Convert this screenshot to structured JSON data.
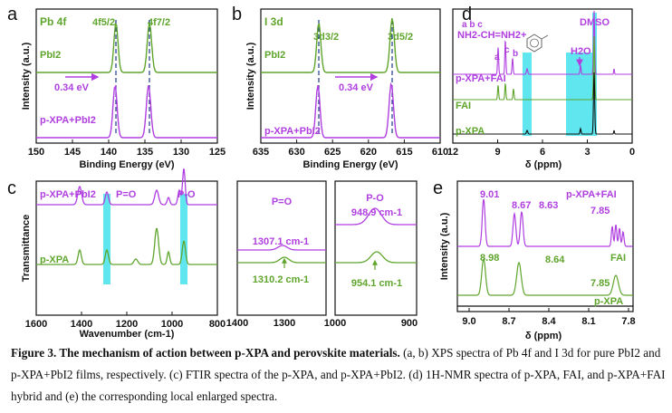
{
  "panels": {
    "a": {
      "letter": "a",
      "title": "Pb 4f",
      "peak_left": "4f5/2",
      "peak_right": "4f7/2",
      "trace_top": "PbI2",
      "trace_bottom": "p-XPA+PbI2",
      "shift": "0.34 eV",
      "ylabel": "Intensity (a.u.)",
      "xlabel": "Binding Energy (eV)",
      "xticks": [
        "150",
        "145",
        "140",
        "135",
        "130",
        "125"
      ]
    },
    "b": {
      "letter": "b",
      "title": "I 3d",
      "peak_left": "3d3/2",
      "peak_right": "3d5/2",
      "trace_top": "PbI2",
      "trace_bottom": "p-XPA+PbI2",
      "shift": "0.34 eV",
      "ylabel": "Intensity (a.u.)",
      "xlabel": "Binding Energy (eV)",
      "xticks": [
        "635",
        "630",
        "625",
        "620",
        "615",
        "610"
      ]
    },
    "c": {
      "letter": "c",
      "trace_top": "p-XPA+PbI2",
      "trace_bottom": "p-XPA",
      "band1": "P=O",
      "band2": "P-O",
      "ylabel": "Transmittance",
      "xlabel": "Wavenumber (cm-1)",
      "xticks": [
        "1600",
        "1400",
        "1200",
        "1000",
        "800"
      ],
      "inset1_title": "P=O",
      "inset1_top": "1307.1 cm-1",
      "inset1_bottom": "1310.2 cm-1",
      "inset1_xticks": [
        "1400",
        "1300"
      ],
      "inset2_title": "P-O",
      "inset2_top": "948.9 cm-1",
      "inset2_bottom": "954.1 cm-1",
      "inset2_xticks": [
        "1000",
        "900"
      ]
    },
    "d": {
      "letter": "d",
      "struct_letters": "a   b   c",
      "structure": "NH2-CH=NH2+",
      "solvent": "DMSO",
      "water": "H2O",
      "peak_letters": [
        "a",
        "c",
        "b"
      ],
      "traces": [
        "p-XPA+FAI",
        "FAI",
        "p-XPA"
      ],
      "xlabel": "δ (ppm)",
      "xticks": [
        "12",
        "9",
        "6",
        "3",
        "0"
      ]
    },
    "e": {
      "letter": "e",
      "ylabel": "Intensity (a.u.)",
      "trace_top": "p-XPA+FAI",
      "trace_mid": "FAI",
      "trace_bottom": "p-XPA",
      "top_peaks": [
        "9.01",
        "8.67",
        "8.63",
        "7.85"
      ],
      "mid_peaks": [
        "8.98",
        "8.64",
        "7.85"
      ],
      "xlabel": "δ (ppm)",
      "xticks": [
        "9.0",
        "8.7",
        "8.4",
        "8.1",
        "7.8"
      ]
    }
  },
  "caption": {
    "label": "Figure 3. The mechanism of action between p-XPA and perovskite materials.",
    "text": " (a, b) XPS spectra of Pb 4f and I 3d for pure PbI2 and p-XPA+PbI2 films, respectively. (c) FTIR spectra of the p-XPA, and p-XPA+PbI2. (d) 1H-NMR spectra of p-XPA, FAI, and p-XPA+FAI hybrid and (e) the corresponding local enlarged spectra."
  },
  "colors": {
    "green": "#5fa52c",
    "purple": "#b03fe0",
    "cyan": "#5fe6ef",
    "dashed": "#1a3a8c",
    "black": "#111111"
  }
}
